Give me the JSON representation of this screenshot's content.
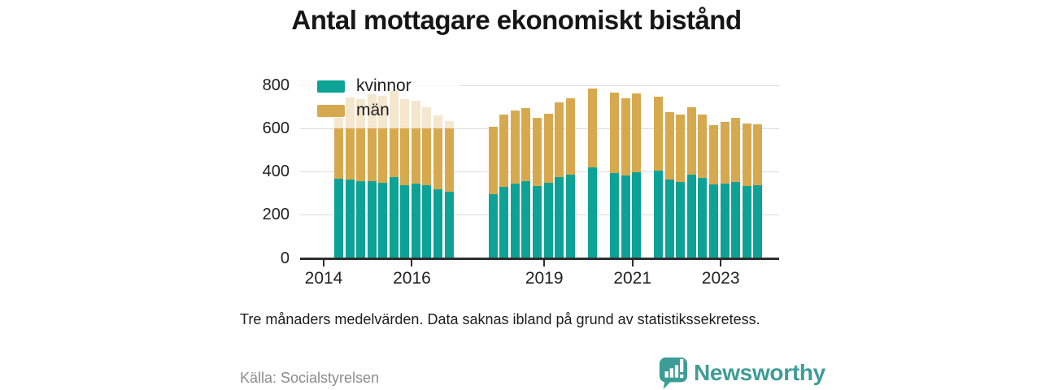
{
  "header": {
    "title": "Antal mottagare ekonomiskt bistånd"
  },
  "chart_data": {
    "type": "bar",
    "stacked": true,
    "title": "Antal mottagare ekonomiskt bistånd",
    "categories": [
      "2014-Q2",
      "2014-Q3",
      "2014-Q4",
      "2015-Q1",
      "2015-Q2",
      "2015-Q3",
      "2015-Q4",
      "2016-Q1",
      "2016-Q2",
      "2016-Q3",
      "2016-Q4",
      "2017-Q4",
      "2018-Q1",
      "2018-Q2",
      "2018-Q3",
      "2018-Q4",
      "2019-Q1",
      "2019-Q2",
      "2019-Q3",
      "2020-Q1",
      "2020-Q3",
      "2020-Q4",
      "2021-Q1",
      "2021-Q3",
      "2021-Q4",
      "2022-Q1",
      "2022-Q2",
      "2022-Q3",
      "2022-Q4",
      "2023-Q1",
      "2023-Q2",
      "2023-Q3",
      "2023-Q4"
    ],
    "series": [
      {
        "name": "kvinnor",
        "color": "#0DA296",
        "values": [
          368,
          365,
          356,
          356,
          350,
          376,
          336,
          343,
          336,
          318,
          307,
          296,
          329,
          346,
          356,
          334,
          350,
          375,
          387,
          421,
          394,
          384,
          396,
          405,
          363,
          351,
          387,
          371,
          339,
          344,
          354,
          334,
          337
        ]
      },
      {
        "name": "män",
        "color": "#D7A94F",
        "values": [
          282,
          380,
          379,
          404,
          400,
          398,
          399,
          387,
          363,
          342,
          326,
          314,
          334,
          338,
          340,
          316,
          319,
          346,
          352,
          364,
          371,
          356,
          367,
          342,
          312,
          314,
          313,
          294,
          277,
          286,
          296,
          290,
          283
        ]
      }
    ],
    "missing_periods": [
      "2017-Q1",
      "2017-Q2",
      "2017-Q3",
      "2019-Q4",
      "2020-Q2",
      "2021-Q2"
    ],
    "y_ticks": [
      0,
      200,
      400,
      600,
      800
    ],
    "ylim": [
      0,
      800
    ],
    "x_ticks": [
      "2014",
      "2016",
      "2019",
      "2021",
      "2023"
    ],
    "legend_position": "top-left",
    "grid": true
  },
  "note": "Tre månaders medelvärden. Data saknas ibland på grund av statistikssekretess.",
  "source": "Källa: Socialstyrelsen",
  "branding": {
    "logo_text": "Newsworthy",
    "logo_color": "#3C9D96"
  }
}
